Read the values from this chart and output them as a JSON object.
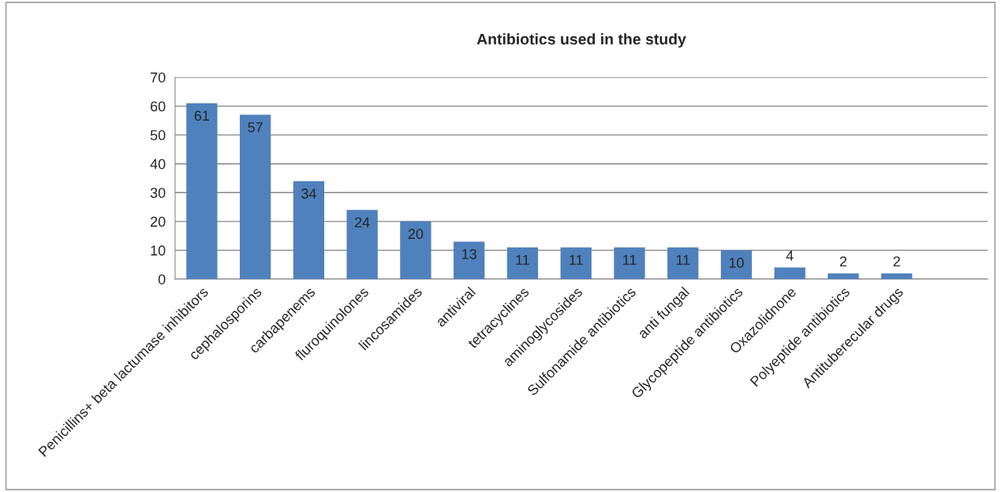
{
  "chart_data": {
    "type": "bar",
    "title": "Antibiotics used in the study",
    "categories": [
      "Penicillins+ beta lactumase inhibitors",
      "cephalosporins",
      "carbapenems",
      "fluroquinolones",
      "lincosamides",
      "antiviral",
      "tetracyclines",
      "aminoglycosides",
      "Sulfonamide antibiotics",
      "anti fungal",
      "Glycopeptide antibiotics",
      "Oxazolidnone",
      "Polyeptide antibiotics",
      "Antituberecular drugs"
    ],
    "values": [
      61,
      57,
      34,
      24,
      20,
      13,
      11,
      11,
      11,
      11,
      10,
      4,
      2,
      2
    ],
    "color": "#4f81bd",
    "ylim": [
      0,
      70
    ],
    "yticks": [
      0,
      10,
      20,
      30,
      40,
      50,
      60,
      70
    ],
    "grid": "y",
    "data_labels": true,
    "legend": false
  }
}
